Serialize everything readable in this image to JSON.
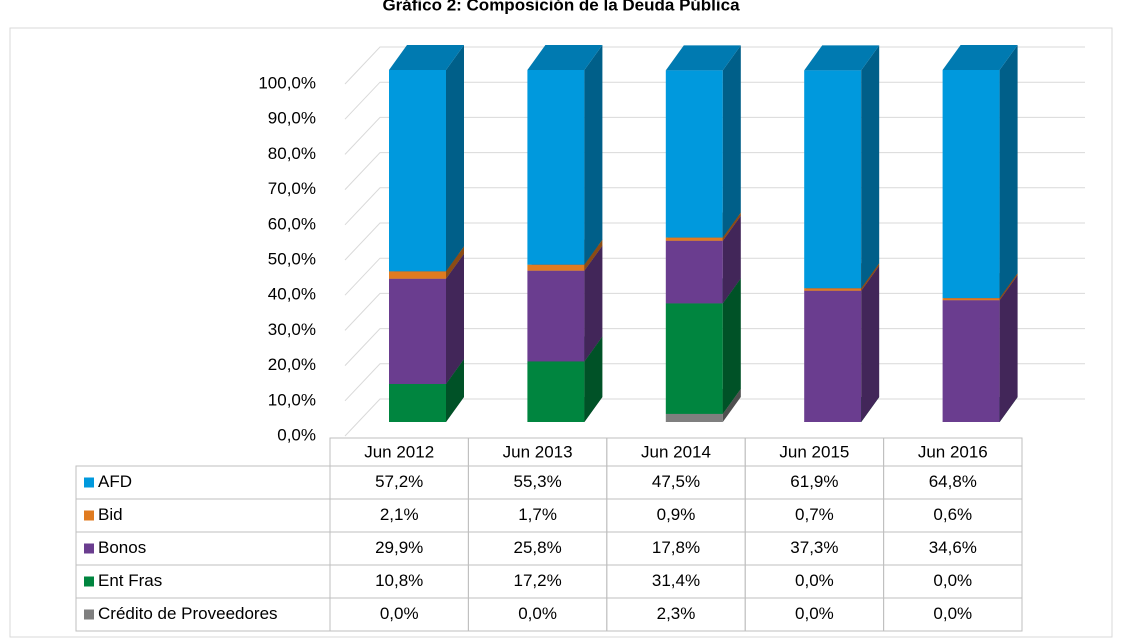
{
  "chart_data": {
    "type": "bar",
    "stacked": true,
    "three_d": true,
    "title": "Gráfico 2: Composición de la Deuda Pública",
    "categories": [
      "Jun 2012",
      "Jun 2013",
      "Jun 2014",
      "Jun 2015",
      "Jun 2016"
    ],
    "series": [
      {
        "name": "AFD",
        "color": "#0099dd",
        "values": [
          57.2,
          55.3,
          47.5,
          61.9,
          64.8
        ],
        "value_labels": [
          "57,2%",
          "55,3%",
          "47,5%",
          "61,9%",
          "64,8%"
        ]
      },
      {
        "name": "Bid",
        "color": "#e07b20",
        "values": [
          2.1,
          1.7,
          0.9,
          0.7,
          0.6
        ],
        "value_labels": [
          "2,1%",
          "1,7%",
          "0,9%",
          "0,7%",
          "0,6%"
        ]
      },
      {
        "name": "Bonos",
        "color": "#6a3d8f",
        "values": [
          29.9,
          25.8,
          17.8,
          37.3,
          34.6
        ],
        "value_labels": [
          "29,9%",
          "25,8%",
          "17,8%",
          "37,3%",
          "34,6%"
        ]
      },
      {
        "name": "Ent Fras",
        "color": "#00853f",
        "values": [
          10.8,
          17.2,
          31.4,
          0.0,
          0.0
        ],
        "value_labels": [
          "10,8%",
          "17,2%",
          "31,4%",
          "0,0%",
          "0,0%"
        ]
      },
      {
        "name": "Crédito de Proveedores",
        "color": "#7f7f7f",
        "values": [
          0.0,
          0.0,
          2.3,
          0.0,
          0.0
        ],
        "value_labels": [
          "0,0%",
          "0,0%",
          "2,3%",
          "0,0%",
          "0,0%"
        ]
      }
    ],
    "ylim": [
      0,
      100
    ],
    "yticks": [
      {
        "value": 0,
        "label": "0,0%"
      },
      {
        "value": 10,
        "label": "10,0%"
      },
      {
        "value": 20,
        "label": "20,0%"
      },
      {
        "value": 30,
        "label": "30,0%"
      },
      {
        "value": 40,
        "label": "40,0%"
      },
      {
        "value": 50,
        "label": "50,0%"
      },
      {
        "value": 60,
        "label": "60,0%"
      },
      {
        "value": 70,
        "label": "70,0%"
      },
      {
        "value": 80,
        "label": "80,0%"
      },
      {
        "value": 90,
        "label": "90,0%"
      },
      {
        "value": 100,
        "label": "100,0%"
      }
    ],
    "grid": true
  }
}
